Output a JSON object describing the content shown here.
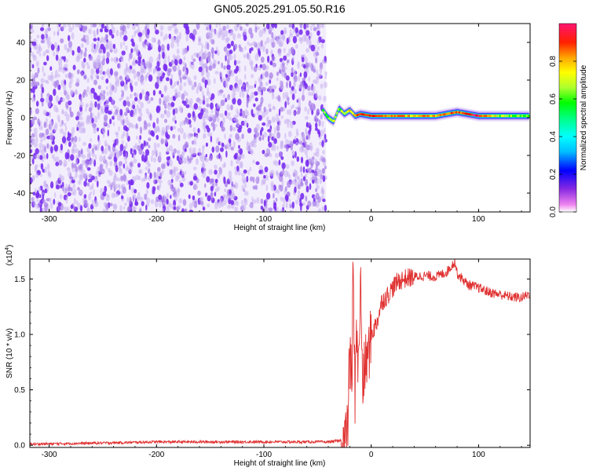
{
  "title": "GN05.2025.291.05.50.R16",
  "colors": {
    "noise_light": "#c9b3f0",
    "noise_dark": "#7a2ff0",
    "snr_line": "#e03030",
    "colormap": [
      "#ee82ee",
      "#8a2be2",
      "#0000ff",
      "#00bfff",
      "#00ffff",
      "#00ff7f",
      "#00ff00",
      "#adff2f",
      "#ffff00",
      "#ffa500",
      "#ff4500",
      "#ff0000",
      "#ff1493"
    ]
  },
  "chart_data": [
    {
      "type": "heatmap",
      "xlabel": "Height of straight line (km)",
      "ylabel": "Frequency (Hz)",
      "xlim": [
        -318,
        148
      ],
      "ylim": [
        -50,
        50
      ],
      "xticks": [
        -300,
        -200,
        -100,
        0,
        100
      ],
      "xtick_labels": [
        "-300",
        "-200",
        "-100",
        "0",
        "100"
      ],
      "yticks": [
        -40,
        -20,
        0,
        20,
        40
      ],
      "ytick_labels": [
        "-40",
        "-20",
        "0",
        "20",
        "40"
      ],
      "noise_region": {
        "x_from": -318,
        "x_to": -42,
        "description_free": true
      },
      "signal_ridge": {
        "x": [
          -45,
          -40,
          -35,
          -30,
          -25,
          -20,
          -15,
          -10,
          0,
          20,
          40,
          60,
          80,
          100,
          120,
          148
        ],
        "freq": [
          4,
          0,
          -2,
          5,
          2,
          4,
          1,
          2,
          1,
          1,
          1,
          1,
          3,
          1,
          1,
          1
        ],
        "peak_amplitude": [
          0.5,
          0.55,
          0.6,
          0.5,
          0.6,
          0.7,
          0.8,
          0.85,
          0.9,
          0.8,
          0.75,
          0.75,
          0.85,
          0.9,
          0.6,
          0.5
        ]
      },
      "colorbar": {
        "label": "Normalized spectral amplitude",
        "range": [
          0,
          1
        ],
        "ticks": [
          0.0,
          0.2,
          0.4,
          0.6,
          0.8
        ],
        "tick_labels": [
          "0.0",
          "0.2",
          "0.4",
          "0.6",
          "0.8"
        ]
      }
    },
    {
      "type": "line",
      "xlabel": "Height of straight line (km)",
      "ylabel": "SNR (10 * v/v)",
      "yscale_label": "(x10",
      "yscale_exp": "4",
      "xlim": [
        -318,
        148
      ],
      "ylim": [
        -0.02,
        1.68
      ],
      "xticks": [
        -300,
        -200,
        -100,
        0,
        100
      ],
      "xtick_labels": [
        "-300",
        "-200",
        "-100",
        "0",
        "100"
      ],
      "yticks": [
        0.0,
        0.5,
        1.0,
        1.5
      ],
      "ytick_labels": [
        "0.0",
        "0.5",
        "1.0",
        "1.5"
      ],
      "series": [
        {
          "x": [
            -318,
            -250,
            -200,
            -150,
            -100,
            -60,
            -40,
            -30,
            -25,
            -22,
            -20,
            -18,
            -17,
            -15,
            -14,
            -12,
            -10,
            -8,
            -5,
            -2,
            0,
            5,
            10,
            15,
            20,
            25,
            30,
            40,
            50,
            60,
            70,
            75,
            78,
            80,
            85,
            90,
            100,
            110,
            120,
            130,
            140,
            148
          ],
          "y": [
            0.01,
            0.02,
            0.03,
            0.03,
            0.03,
            0.03,
            0.03,
            0.04,
            0.05,
            0.12,
            0.9,
            0.5,
            1.6,
            0.4,
            1.2,
            0.6,
            1.5,
            0.55,
            0.75,
            0.85,
            1.0,
            1.1,
            1.3,
            1.35,
            1.42,
            1.48,
            1.5,
            1.52,
            1.53,
            1.52,
            1.56,
            1.62,
            1.66,
            1.55,
            1.5,
            1.45,
            1.42,
            1.38,
            1.36,
            1.34,
            1.33,
            1.37
          ]
        }
      ]
    }
  ]
}
